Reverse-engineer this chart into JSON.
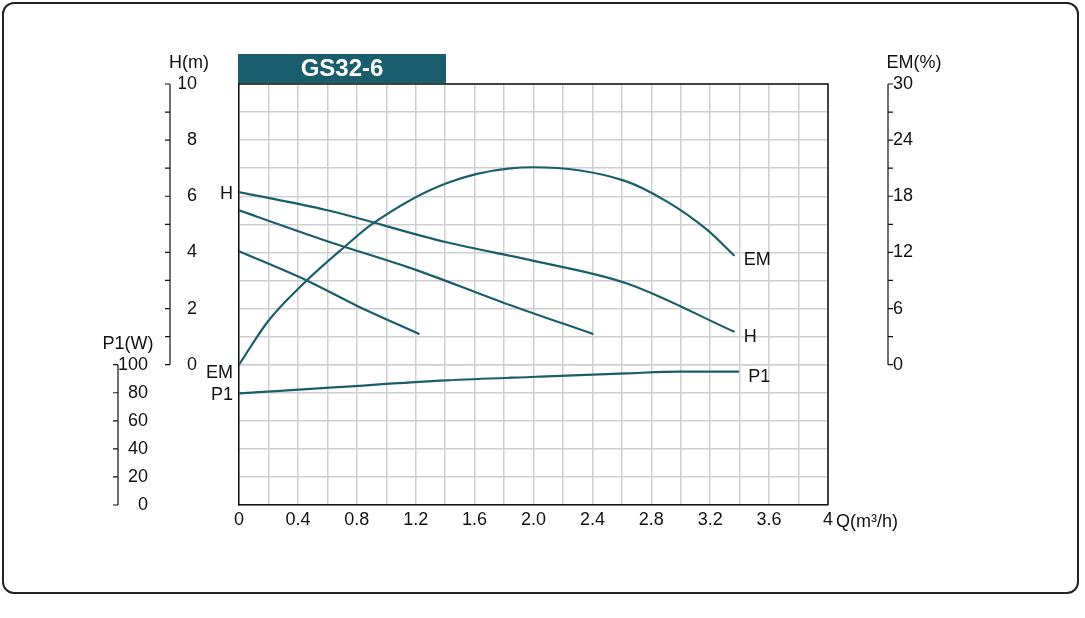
{
  "chart_data": {
    "type": "line",
    "title": "GS32-6",
    "xlabel": "Q(m³/h)",
    "ylabel": "H(m)",
    "y2label": "EM(%)",
    "y3label": "P1(W)",
    "xlim": [
      0,
      4
    ],
    "xticks": [
      0,
      {
        "value": 0.2,
        "label": null
      },
      0.4,
      {
        "value": 0.6,
        "label": null
      },
      0.8,
      {
        "value": 1,
        "label": null
      },
      1.2,
      {
        "value": 1.4,
        "label": null
      },
      1.6,
      {
        "value": 1.8,
        "label": null
      },
      {
        "value": 2,
        "label": "2.0"
      },
      {
        "value": 2.2,
        "label": null
      },
      2.4,
      {
        "value": 2.6,
        "label": null
      },
      2.8,
      {
        "value": 3,
        "label": null
      },
      3.2,
      {
        "value": 3.4,
        "label": null
      },
      3.6,
      {
        "value": 3.8,
        "label": null
      },
      4
    ],
    "ylim": [
      -5,
      10
    ],
    "yticks": [
      0,
      {
        "value": 1,
        "label": null
      },
      2,
      {
        "value": 3,
        "label": null
      },
      4,
      {
        "value": 5,
        "label": null
      },
      6,
      {
        "value": 7,
        "label": null
      },
      8,
      {
        "value": 9,
        "label": null
      },
      10
    ],
    "y2lim": [
      -15,
      30
    ],
    "y2ticks": [
      0,
      {
        "value": 3,
        "label": null
      },
      6,
      {
        "value": 9,
        "label": null
      },
      12,
      {
        "value": 15,
        "label": null
      },
      18,
      {
        "value": 21,
        "label": null
      },
      24,
      {
        "value": 27,
        "label": null
      },
      30
    ],
    "y3lim": [
      0,
      300
    ],
    "y3ticks": [
      0,
      20,
      40,
      60,
      80,
      100
    ],
    "grid": true,
    "legend": false,
    "marker": "none",
    "line_style": "solid",
    "series": [
      {
        "name": "H",
        "color": "#1a5e6e",
        "x": [
          0,
          0.6,
          1.41,
          2.0,
          2.63,
          3.36
        ],
        "values": [
          6.15,
          5.5,
          4.36,
          3.7,
          2.9,
          1.18
        ]
      },
      {
        "color": "#1a5e6e",
        "x": [
          0,
          0.6,
          1.21,
          1.8,
          2.4
        ],
        "values": [
          5.5,
          4.4,
          3.36,
          2.2,
          1.1
        ]
      },
      {
        "color": "#1a5e6e",
        "x": [
          0,
          0.46,
          0.8,
          1.22
        ],
        "values": [
          4.04,
          3.0,
          2.1,
          1.1
        ]
      },
      {
        "name": "EM",
        "axis": "y2",
        "color": "#1a5e6e",
        "x": [
          0,
          0.2,
          0.46,
          0.71,
          0.91,
          1.41,
          2.0,
          2.61,
          2.91,
          3.18,
          3.36
        ],
        "values": [
          0,
          4.7,
          9.0,
          12.5,
          15.1,
          19.4,
          21.1,
          19.7,
          17.4,
          14.4,
          11.7
        ]
      },
      {
        "name": "P1",
        "axis": "y3",
        "color": "#1a5e6e",
        "x": [
          0,
          0.67,
          1.41,
          2.02,
          2.63,
          3.0,
          3.39
        ],
        "values": [
          79.5,
          84,
          88.8,
          91.4,
          93.8,
          95,
          95
        ]
      }
    ]
  }
}
